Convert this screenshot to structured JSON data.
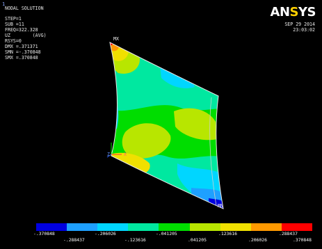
{
  "viewport": {
    "window_number": "1"
  },
  "header": {
    "title": "NODAL SOLUTION",
    "lines": [
      "STEP=1",
      "SUB =11",
      "FREQ=322.328",
      "UZ        (AVG)",
      "RSYS=0",
      "DMX =.371371",
      "SMN =-.370848",
      "SMX =.370848"
    ]
  },
  "brand": {
    "logo_text_main": "AN",
    "logo_text_tri": "S",
    "logo_text_end": "YS",
    "date": "SEP 29 2014",
    "time": "23:03:02"
  },
  "markers": {
    "max_label": "MX",
    "min_label": "MN",
    "axis_y": "Y",
    "axis_z": "Z",
    "axis_x": "X"
  },
  "legend": {
    "colors": [
      "#0000e0",
      "#1ea0ff",
      "#00d6ff",
      "#00e8a0",
      "#00dd00",
      "#b8e600",
      "#f0e000",
      "#ff9900",
      "#ff0000"
    ],
    "labels_top": [
      "-.370848",
      "-.206026",
      "-.041205",
      ".123616",
      ".288437"
    ],
    "labels_bottom": [
      "-.288437",
      "-.123616",
      ".041205",
      ".206026",
      ".370848"
    ]
  }
}
